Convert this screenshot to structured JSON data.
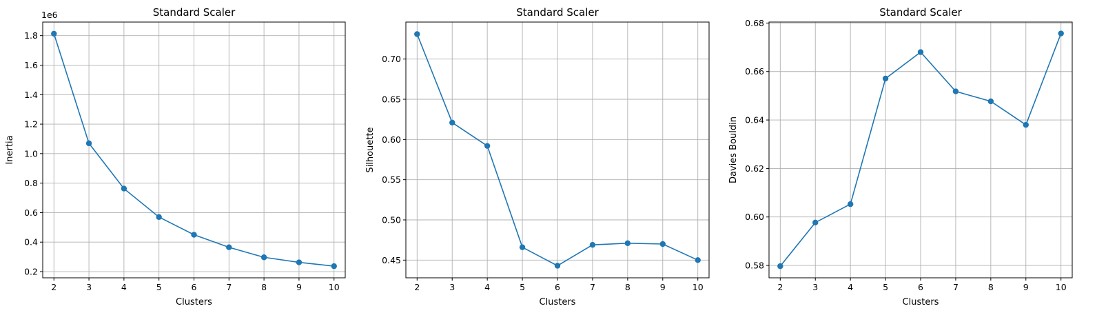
{
  "chart_data": [
    {
      "type": "line",
      "title": "Standard Scaler",
      "xlabel": "Clusters",
      "ylabel": "Inertia",
      "y_offset_label": "1e6",
      "color": "#1f77b4",
      "marker": "circle",
      "grid": true,
      "x": [
        2,
        3,
        4,
        5,
        6,
        7,
        8,
        9,
        10
      ],
      "y": [
        1.813,
        1.07,
        0.763,
        0.57,
        0.45,
        0.365,
        0.297,
        0.263,
        0.237
      ],
      "xlim": [
        1.68,
        10.32
      ],
      "ylim": [
        0.158,
        1.892
      ],
      "xticks": [
        2,
        3,
        4,
        5,
        6,
        7,
        8,
        9,
        10
      ],
      "xtick_labels": [
        "2",
        "3",
        "4",
        "5",
        "6",
        "7",
        "8",
        "9",
        "10"
      ],
      "yticks": [
        0.2,
        0.4,
        0.6,
        0.8,
        1.0,
        1.2,
        1.4,
        1.6,
        1.8
      ],
      "ytick_labels": [
        "0.2",
        "0.4",
        "0.6",
        "0.8",
        "1.0",
        "1.2",
        "1.4",
        "1.6",
        "1.8"
      ]
    },
    {
      "type": "line",
      "title": "Standard Scaler",
      "xlabel": "Clusters",
      "ylabel": "Silhouette",
      "color": "#1f77b4",
      "marker": "circle",
      "grid": true,
      "x": [
        2,
        3,
        4,
        5,
        6,
        7,
        8,
        9,
        10
      ],
      "y": [
        0.731,
        0.621,
        0.592,
        0.466,
        0.443,
        0.469,
        0.471,
        0.47,
        0.45
      ],
      "xlim": [
        1.68,
        10.32
      ],
      "ylim": [
        0.428,
        0.746
      ],
      "xticks": [
        2,
        3,
        4,
        5,
        6,
        7,
        8,
        9,
        10
      ],
      "xtick_labels": [
        "2",
        "3",
        "4",
        "5",
        "6",
        "7",
        "8",
        "9",
        "10"
      ],
      "yticks": [
        0.45,
        0.5,
        0.55,
        0.6,
        0.65,
        0.7
      ],
      "ytick_labels": [
        "0.45",
        "0.50",
        "0.55",
        "0.60",
        "0.65",
        "0.70"
      ]
    },
    {
      "type": "line",
      "title": "Standard Scaler",
      "xlabel": "Clusters",
      "ylabel": "Davies Bouldin",
      "color": "#1f77b4",
      "marker": "circle",
      "grid": true,
      "x": [
        2,
        3,
        4,
        5,
        6,
        7,
        8,
        9,
        10
      ],
      "y": [
        0.5797,
        0.5977,
        0.6053,
        0.6571,
        0.668,
        0.6518,
        0.6477,
        0.638,
        0.6757
      ],
      "xlim": [
        1.68,
        10.32
      ],
      "ylim": [
        0.5749,
        0.6804
      ],
      "xticks": [
        2,
        3,
        4,
        5,
        6,
        7,
        8,
        9,
        10
      ],
      "xtick_labels": [
        "2",
        "3",
        "4",
        "5",
        "6",
        "7",
        "8",
        "9",
        "10"
      ],
      "yticks": [
        0.58,
        0.6,
        0.62,
        0.64,
        0.66,
        0.68
      ],
      "ytick_labels": [
        "0.58",
        "0.60",
        "0.62",
        "0.64",
        "0.66",
        "0.68"
      ]
    }
  ]
}
